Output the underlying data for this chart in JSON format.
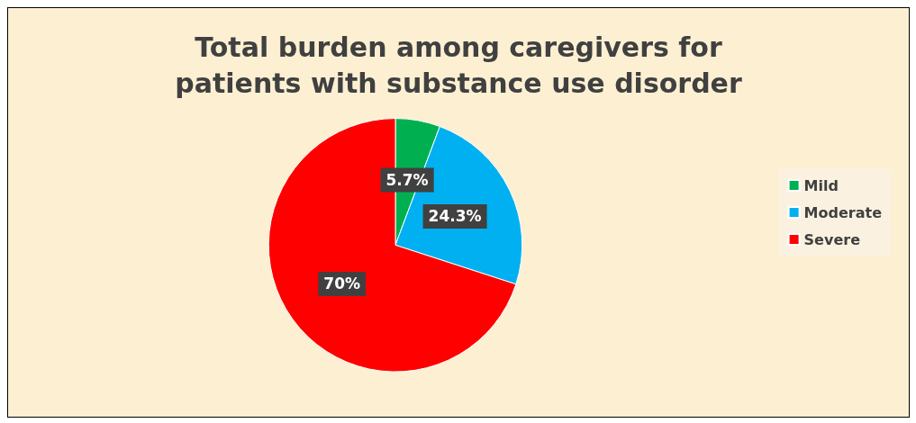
{
  "chart_data": {
    "type": "pie",
    "title": "Total burden among caregivers for\npatients with substance use disorder",
    "categories": [
      "Mild",
      "Moderate",
      "Severe"
    ],
    "values": [
      5.7,
      24.3,
      70
    ],
    "colors": [
      "#00b050",
      "#00b0f0",
      "#ff0000"
    ],
    "value_labels": [
      "5.7%",
      "24.3%",
      "70%"
    ],
    "legend": "right"
  }
}
